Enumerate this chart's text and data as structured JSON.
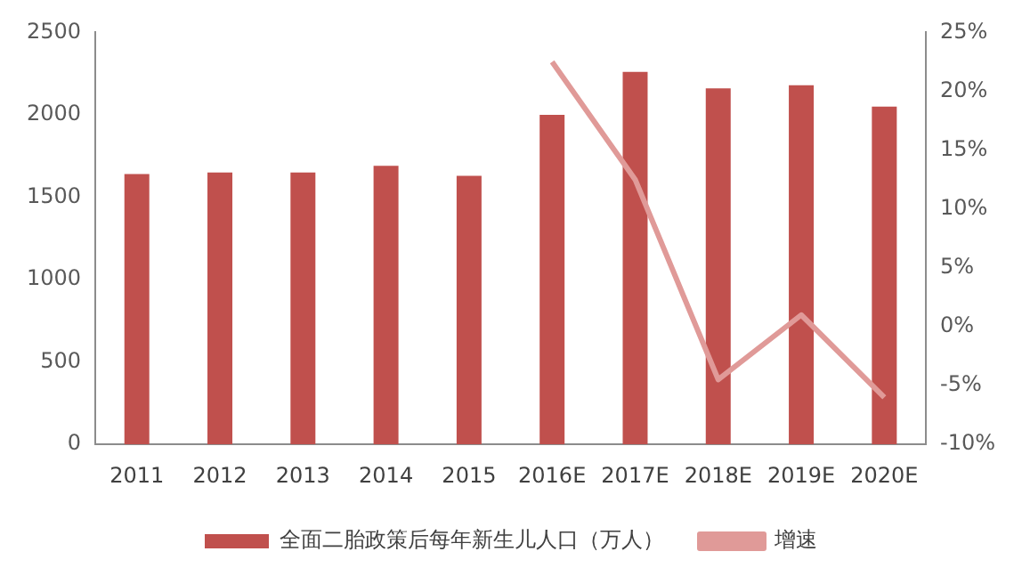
{
  "chart_data": {
    "type": "bar",
    "categories": [
      "2011",
      "2012",
      "2013",
      "2014",
      "2015",
      "2016E",
      "2017E",
      "2018E",
      "2019E",
      "2020E"
    ],
    "series": [
      {
        "name": "全面二胎政策后每年新生儿人口（万人）",
        "color": "#c0504d",
        "values": [
          1640,
          1650,
          1650,
          1690,
          1630,
          2000,
          2260,
          2160,
          2180,
          2050
        ]
      },
      {
        "name": "增速",
        "type": "line",
        "axis": "y2",
        "color": "#e09a98",
        "values": [
          null,
          null,
          null,
          null,
          null,
          22.5,
          12.5,
          -4.5,
          1,
          -6
        ]
      }
    ],
    "ylim": [
      0,
      2500
    ],
    "yticks": [
      0,
      500,
      1000,
      1500,
      2000,
      2500
    ],
    "y2lim": [
      -10,
      25
    ],
    "y2ticks": [
      {
        "value": -10,
        "label": "-10%"
      },
      {
        "value": -5,
        "label": "-5%"
      },
      {
        "value": 0,
        "label": "0%"
      },
      {
        "value": 5,
        "label": "5%"
      },
      {
        "value": 10,
        "label": "10%"
      },
      {
        "value": 15,
        "label": "15%"
      },
      {
        "value": 20,
        "label": "20%"
      },
      {
        "value": 25,
        "label": "25%"
      }
    ],
    "legend": "bottom",
    "grid": false,
    "marker": "none"
  }
}
